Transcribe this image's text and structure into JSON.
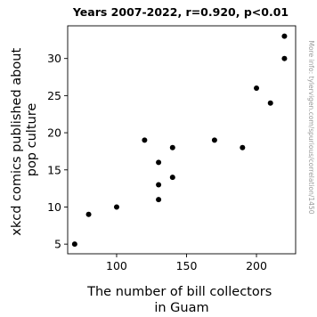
{
  "chart_data": {
    "type": "scatter",
    "title": "Years 2007-2022, r=0.920, p<0.01",
    "xlabel_lines": [
      "The number of bill collectors",
      "in Guam"
    ],
    "ylabel_lines": [
      "xkcd comics published about",
      "pop culture"
    ],
    "xlim": [
      65,
      228
    ],
    "ylim": [
      3.7,
      34.4
    ],
    "xticks": [
      100,
      150,
      200
    ],
    "yticks": [
      5,
      10,
      15,
      20,
      25,
      30
    ],
    "grid": false,
    "marker_color": "#000000",
    "points": [
      {
        "x": 70,
        "y": 5
      },
      {
        "x": 80,
        "y": 9
      },
      {
        "x": 100,
        "y": 10
      },
      {
        "x": 120,
        "y": 19
      },
      {
        "x": 130,
        "y": 16
      },
      {
        "x": 130,
        "y": 13
      },
      {
        "x": 130,
        "y": 11
      },
      {
        "x": 140,
        "y": 18
      },
      {
        "x": 140,
        "y": 14
      },
      {
        "x": 170,
        "y": 19
      },
      {
        "x": 190,
        "y": 18
      },
      {
        "x": 200,
        "y": 26
      },
      {
        "x": 210,
        "y": 24
      },
      {
        "x": 220,
        "y": 33
      },
      {
        "x": 220,
        "y": 30
      }
    ]
  },
  "watermark": "More info: tylervigen.com/spurious/correlation/1450"
}
